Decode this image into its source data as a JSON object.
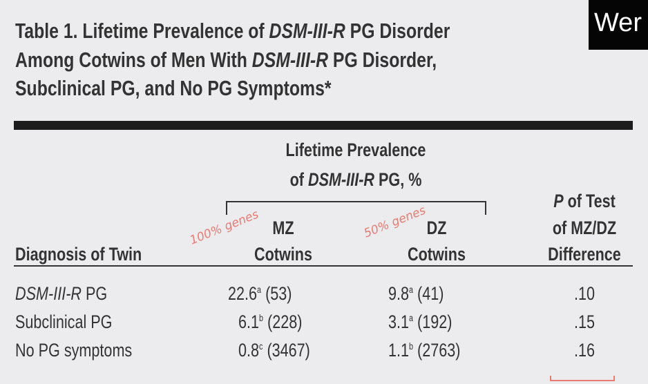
{
  "title": {
    "prefix": "Table 1. Lifetime Prevalence of ",
    "dsm": "DSM-III-R",
    "l1_suffix": " PG Disorder",
    "l2_prefix": "Among Cotwins of Men With ",
    "l2_suffix": " PG Disorder,",
    "l3": "Subclinical PG, and No PG Symptoms*"
  },
  "overlay": {
    "text": "Wer"
  },
  "header": {
    "span_l1": "Lifetime Prevalence",
    "span_l2_prefix": "of ",
    "span_l2_dsm": "DSM-III-R",
    "span_l2_suffix": " PG, %",
    "diagnosis": "Diagnosis of Twin",
    "mz_l1": "MZ",
    "mz_l2": "Cotwins",
    "dz_l1": "DZ",
    "dz_l2": "Cotwins",
    "p_l1_italic": "P",
    "p_l1": " of Test",
    "p_l2": "of MZ/DZ",
    "p_l3": "Difference"
  },
  "annotations": {
    "mz": "100% genes",
    "dz": "50% genes"
  },
  "rows": [
    {
      "dx_italic": "DSM-III-R",
      "dx": " PG",
      "mz": "22.6",
      "mz_sup": "a",
      "mz_n": " (53)",
      "dz": "9.8",
      "dz_sup": "a",
      "dz_n": " (41)",
      "p": ".10"
    },
    {
      "dx_italic": "",
      "dx": "Subclinical PG",
      "mz": "6.1",
      "mz_sup": "b",
      "mz_n": " (228)",
      "dz": "3.1",
      "dz_sup": "a",
      "dz_n": " (192)",
      "p": ".15"
    },
    {
      "dx_italic": "",
      "dx": "No PG symptoms",
      "mz": "0.8",
      "mz_sup": "c",
      "mz_n": " (3467)",
      "dz": "1.1",
      "dz_sup": "b",
      "dz_n": " (2763)",
      "p": ".16"
    }
  ],
  "colors": {
    "annotation": "#ea7a72",
    "rule": "#1c1c1c",
    "background": "#ececee"
  }
}
